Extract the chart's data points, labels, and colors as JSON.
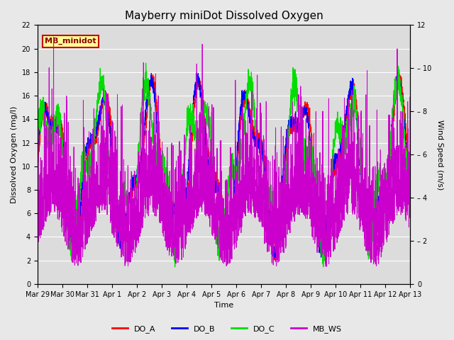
{
  "title": "Mayberry miniDot Dissolved Oxygen",
  "xlabel": "Time",
  "ylabel_left": "Dissolved Oxygen (mg/l)",
  "ylabel_right": "Wind Speed (m/s)",
  "ylim_left": [
    0,
    22
  ],
  "ylim_right": [
    0,
    12
  ],
  "yticks_left": [
    0,
    2,
    4,
    6,
    8,
    10,
    12,
    14,
    16,
    18,
    20,
    22
  ],
  "yticks_right": [
    0,
    2,
    4,
    6,
    8,
    10,
    12
  ],
  "xtick_labels": [
    "Mar 29",
    "Mar 30",
    "Mar 31",
    "Apr 1",
    "Apr 2",
    "Apr 3",
    "Apr 4",
    "Apr 5",
    "Apr 6",
    "Apr 7",
    "Apr 8",
    "Apr 9",
    "Apr 10",
    "Apr 11",
    "Apr 12",
    "Apr 13"
  ],
  "xtick_positions": [
    0,
    1,
    2,
    3,
    4,
    5,
    6,
    7,
    8,
    9,
    10,
    11,
    12,
    13,
    14,
    15
  ],
  "color_DO_A": "#ff0000",
  "color_DO_B": "#0000ff",
  "color_DO_C": "#00dd00",
  "color_MB_WS": "#cc00cc",
  "fig_bg": "#e8e8e8",
  "plot_bg": "#dcdcdc",
  "grid_color": "#ffffff",
  "annotation_text": "MB_minidot",
  "annotation_bg": "#ffff99",
  "annotation_border": "#cc0000",
  "title_fontsize": 11,
  "axis_fontsize": 8,
  "tick_fontsize": 7,
  "legend_fontsize": 8
}
